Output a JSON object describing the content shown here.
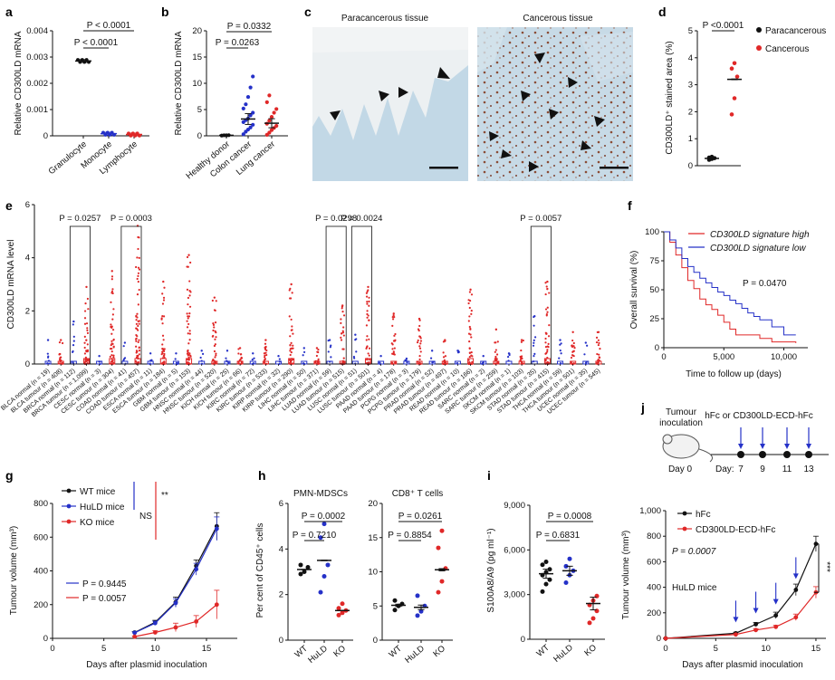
{
  "colors": {
    "black": "#111111",
    "blue": "#2531c8",
    "red": "#e02828",
    "tissue": "#bfd6e4",
    "stain": "#8a4c35"
  },
  "panels": {
    "a": {
      "label": "a",
      "chart_data": {
        "type": "scatter",
        "ylabel": "Relative CD300LD mRNA",
        "ylim": [
          0,
          0.004
        ],
        "yticks": [
          "0",
          "0.001",
          "0.002",
          "0.003",
          "0.004"
        ],
        "categories": [
          "Granulocyte",
          "Monocyte",
          "Lymphocyte"
        ],
        "means": [
          0.00285,
          8e-05,
          5e-05
        ],
        "pvalues": [
          "P < 0.0001",
          "P < 0.0001"
        ]
      }
    },
    "b": {
      "label": "b",
      "chart_data": {
        "type": "scatter",
        "ylabel": "Relative CD300LD mRNA",
        "ylim": [
          0,
          20
        ],
        "yticks": [
          "0",
          "5",
          "10",
          "15",
          "20"
        ],
        "categories": [
          "Healthy donor",
          "Colon cancer",
          "Lung cancer"
        ],
        "groups": [
          [
            0.05,
            0.1,
            0.08,
            0.12
          ],
          [
            0.3,
            0.8,
            1.2,
            1.6,
            2.1,
            2.6,
            3.0,
            3.3,
            3.9,
            4.4,
            5.2,
            6.0,
            7.4,
            9.2,
            11.3
          ],
          [
            0.2,
            0.6,
            1.1,
            1.5,
            1.9,
            2.3,
            2.9,
            3.6,
            4.4,
            5.1,
            6.4,
            7.7
          ]
        ],
        "means": [
          0.1,
          3.2,
          2.4
        ],
        "pvalues": [
          "P = 0.0332",
          "P = 0.0263"
        ]
      }
    },
    "c": {
      "label": "c",
      "titles": [
        "Paracancerous tissue",
        "Cancerous tissue"
      ]
    },
    "d": {
      "label": "d",
      "chart_data": {
        "type": "scatter",
        "ylabel": "CD300LD⁺ stained area (%)",
        "ylim": [
          0,
          5
        ],
        "yticks": [
          "0",
          "1",
          "2",
          "3",
          "4",
          "5"
        ],
        "series": [
          {
            "name": "Paracancerous",
            "values": [
              0.22,
              0.25,
              0.28,
              0.3,
              0.33
            ],
            "mean": 0.27
          },
          {
            "name": "Cancerous",
            "values": [
              1.9,
              2.5,
              3.3,
              3.6,
              3.8
            ],
            "mean": 3.2
          }
        ],
        "pvalue": "P <0.0001"
      }
    },
    "e": {
      "label": "e",
      "chart_data": {
        "type": "scatter",
        "ylabel": "CD300LD mRNA level",
        "ylim": [
          0,
          6
        ],
        "yticks": [
          "0",
          "2",
          "4",
          "6"
        ],
        "categories": [
          "BLCA normal (n = 19)",
          "BLCA tumour (n = 408)",
          "BRCA normal (n = 112)",
          "BRCA tumour (n = 1,099)",
          "CESC normal (n = 3)",
          "CESC tumour (n = 304)",
          "COAD normal (n = 41)",
          "COAD tumour (n = 457)",
          "ESCA normal (n = 11)",
          "ESCA tumour (n = 184)",
          "GBM normal (n = 5)",
          "GBM tumour (n = 153)",
          "HNSC normal (n = 44)",
          "HNSC tumour (n = 520)",
          "KICH normal (n = 25)",
          "KICH tumour (n = 66)",
          "KIRC normal (n = 72)",
          "KIRC tumour (n = 533)",
          "KIRP normal (n = 32)",
          "KIRP tumour (n = 290)",
          "LIHC normal (n = 50)",
          "LIHC tumour (n = 371)",
          "LUAD normal (n = 59)",
          "LUAD tumour (n = 515)",
          "LUSC normal (n = 51)",
          "LUSC tumour (n = 501)",
          "PAAD normal (n = 4)",
          "PAAD tumour (n = 178)",
          "PCPG normal (n = 3)",
          "PCPG tumour (n = 179)",
          "PRAD normal (n = 52)",
          "PRAD tumour (n = 497)",
          "READ normal (n = 10)",
          "READ tumour (n = 166)",
          "SARC normal (n = 2)",
          "SARC tumour (n = 259)",
          "SKCM normal (n = 1)",
          "SKCM tumour (n = 103)",
          "STAD normal (n = 35)",
          "STAD tumour (n = 415)",
          "THCA normal (n = 59)",
          "THCA tumour (n = 501)",
          "UCEC normal (n = 35)",
          "UCEC tumour (n = 545)"
        ],
        "maxima": [
          0.9,
          0.9,
          1.6,
          2.9,
          0.3,
          3.5,
          0.8,
          5.2,
          0.4,
          3.1,
          0.4,
          4.1,
          0.5,
          2.5,
          0.5,
          0.6,
          0.4,
          0.9,
          0.3,
          3.0,
          0.6,
          0.6,
          0.9,
          2.2,
          1.1,
          2.9,
          0.3,
          1.9,
          0.2,
          1.7,
          0.5,
          0.9,
          0.5,
          2.8,
          0.3,
          1.3,
          0.4,
          0.9,
          1.8,
          3.1,
          0.9,
          1.2,
          0.8,
          1.2
        ],
        "pvalues": [
          {
            "pair": [
              2,
              3
            ],
            "text": "P = 0.0257"
          },
          {
            "pair": [
              6,
              7
            ],
            "text": "P = 0.0003"
          },
          {
            "pair": [
              22,
              23
            ],
            "text": "P = 0.0298"
          },
          {
            "pair": [
              24,
              25
            ],
            "text": "P = 0.0024"
          },
          {
            "pair": [
              38,
              39
            ],
            "text": "P = 0.0057"
          }
        ]
      }
    },
    "f": {
      "label": "f",
      "chart_data": {
        "type": "line",
        "xlabel": "Time to follow up (days)",
        "ylabel": "Overall survival (%)",
        "xlim": [
          0,
          12000
        ],
        "ylim": [
          0,
          100
        ],
        "xticks": [
          "0",
          "5,000",
          "10,000"
        ],
        "yticks": [
          "0",
          "25",
          "50",
          "75",
          "100"
        ],
        "series": [
          {
            "name": "CD300LD signature high",
            "x": [
              0,
              500,
              1000,
              1500,
              2000,
              2500,
              3000,
              3500,
              4000,
              4500,
              5000,
              5500,
              6000,
              7000,
              8000,
              9000,
              10000,
              11000
            ],
            "y": [
              100,
              91,
              80,
              69,
              58,
              51,
              42,
              37,
              33,
              28,
              22,
              16,
              11,
              11,
              8,
              5,
              5,
              4
            ]
          },
          {
            "name": "CD300LD signature low",
            "x": [
              0,
              500,
              1000,
              1500,
              2000,
              2500,
              3000,
              3500,
              4000,
              4500,
              5000,
              5500,
              6000,
              6500,
              7000,
              7500,
              8000,
              9000,
              10000,
              11000
            ],
            "y": [
              100,
              93,
              86,
              77,
              70,
              65,
              60,
              56,
              52,
              48,
              45,
              41,
              38,
              34,
              30,
              27,
              24,
              18,
              11,
              11
            ]
          }
        ],
        "pvalue": "P = 0.0470"
      }
    },
    "g": {
      "label": "g",
      "chart_data": {
        "type": "line",
        "xlabel": "Days after plasmid inoculation",
        "ylabel": "Tumour volume (mm³)",
        "xlim": [
          0,
          18
        ],
        "ylim": [
          0,
          800
        ],
        "xticks": [
          "0",
          "5",
          "10",
          "15"
        ],
        "yticks": [
          "0",
          "200",
          "400",
          "600",
          "800"
        ],
        "x": [
          8,
          10,
          12,
          14,
          16
        ],
        "series": [
          {
            "name": "WT mice",
            "values": [
              35,
              95,
              215,
              430,
              665
            ],
            "err": [
              5,
              12,
              30,
              35,
              80
            ]
          },
          {
            "name": "HuLD mice",
            "values": [
              33,
              90,
              210,
              410,
              650
            ],
            "err": [
              5,
              12,
              25,
              35,
              70
            ]
          },
          {
            "name": "KO mice",
            "values": [
              10,
              35,
              65,
              100,
              200
            ],
            "err": [
              3,
              10,
              25,
              35,
              85
            ]
          }
        ],
        "sig_labels": [
          "NS",
          "**"
        ],
        "pvalues": [
          "P = 0.9445",
          "P = 0.0057"
        ]
      }
    },
    "h": {
      "label": "h",
      "ylabel": "Per cent of CD45⁺ cells",
      "subplots": [
        {
          "title": "PMN-MDSCs",
          "chart_data": {
            "type": "scatter",
            "ylim": [
              0,
              6
            ],
            "yticks": [
              "0",
              "2",
              "4",
              "6"
            ],
            "categories": [
              "WT",
              "HuLD",
              "KO"
            ],
            "groups": [
              [
                2.9,
                3.0,
                3.2,
                3.3
              ],
              [
                2.1,
                2.8,
                3.3,
                4.5,
                5.1
              ],
              [
                1.1,
                1.2,
                1.3,
                1.4,
                1.6
              ]
            ],
            "means": [
              3.1,
              3.5,
              1.3
            ],
            "pvalues": [
              "P = 0.0002",
              "P = 0.7210"
            ]
          }
        },
        {
          "title": "CD8⁺ T cells",
          "chart_data": {
            "type": "scatter",
            "ylim": [
              0,
              20
            ],
            "yticks": [
              "0",
              "5",
              "10",
              "15",
              "20"
            ],
            "categories": [
              "WT",
              "HuLD",
              "KO"
            ],
            "groups": [
              [
                4.4,
                5.0,
                5.3,
                5.8
              ],
              [
                3.6,
                4.2,
                5.0,
                6.5
              ],
              [
                7.0,
                8.6,
                10.5,
                13.5,
                16.0
              ]
            ],
            "means": [
              5.1,
              4.8,
              10.3
            ],
            "pvalues": [
              "P = 0.0261",
              "P = 0.8854"
            ]
          }
        }
      ]
    },
    "i": {
      "label": "i",
      "chart_data": {
        "type": "scatter",
        "ylabel": "S100A8/A9 (pg ml⁻¹)",
        "ylim": [
          0,
          9000
        ],
        "yticks": [
          "0",
          "3,000",
          "6,000",
          "9,000"
        ],
        "categories": [
          "WT",
          "HuLD",
          "KO"
        ],
        "groups": [
          [
            3200,
            3700,
            4000,
            4300,
            4500,
            4700,
            5000,
            5200
          ],
          [
            3800,
            4300,
            4600,
            4900,
            5400
          ],
          [
            1100,
            1400,
            1900,
            2300,
            2600,
            2900
          ]
        ],
        "means": [
          4400,
          4600,
          2400
        ],
        "pvalues": [
          "P = 0.0008",
          "P = 0.6831"
        ]
      }
    },
    "j": {
      "label": "j",
      "schematic": {
        "inoculation": "Tumour inoculation",
        "treatment": "hFc or CD300LD-ECD-hFc",
        "day0": "Day 0",
        "day_prefix": "Day:",
        "days": [
          "7",
          "9",
          "11",
          "13"
        ]
      },
      "chart_data": {
        "type": "line",
        "xlabel": "Days after plasmid inoculation",
        "ylabel": "Tumour volume (mm³)",
        "xlim": [
          0,
          16
        ],
        "ylim": [
          0,
          1000
        ],
        "xticks": [
          "0",
          "5",
          "10",
          "15"
        ],
        "yticks": [
          "0",
          "200",
          "400",
          "600",
          "800",
          "1,000"
        ],
        "x": [
          0,
          7,
          9,
          11,
          13,
          15
        ],
        "series": [
          {
            "name": "hFc",
            "values": [
              0,
              40,
              110,
              180,
              380,
              740
            ],
            "err": [
              0,
              8,
              15,
              25,
              45,
              60
            ]
          },
          {
            "name": "CD300LD-ECD-hFc",
            "values": [
              0,
              30,
              65,
              90,
              165,
              360
            ],
            "err": [
              0,
              6,
              10,
              12,
              25,
              45
            ]
          }
        ],
        "pvalue": "P = 0.0007",
        "annotation": "HuLD mice",
        "sig": "***",
        "arrow_days": [
          7,
          9,
          11,
          13
        ]
      }
    }
  }
}
